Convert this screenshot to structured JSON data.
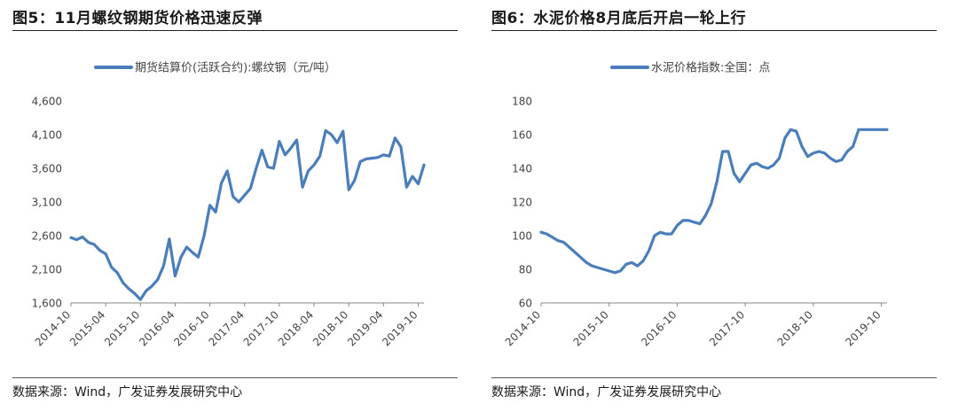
{
  "figures": [
    {
      "title": "图5：11月螺纹钢期货价格迅速反弹",
      "source": "数据来源：Wind，广发证券发展研究中心"
    },
    {
      "title": "图6：水泥价格8月底后开启一轮上行",
      "source": "数据来源：Wind，广发证券发展研究中心"
    }
  ],
  "chart_data": [
    {
      "type": "line",
      "title": "",
      "xlabel": "",
      "ylabel": "",
      "legend": "期货结算价(活跃合约):螺纹钢（元/吨）",
      "legend_position": "top",
      "color": "#4a7ebb",
      "grid": false,
      "ylim": [
        1600,
        4600
      ],
      "yticks": [
        1600,
        2100,
        2600,
        3100,
        3600,
        4100,
        4600
      ],
      "ytick_labels": [
        "1,600",
        "2,100",
        "2,600",
        "3,100",
        "3,600",
        "4,100",
        "4,600"
      ],
      "xlim": [
        "2014-10",
        "2019-11"
      ],
      "xtick_labels": [
        "2014-10",
        "2015-04",
        "2015-10",
        "2016-04",
        "2016-10",
        "2017-04",
        "2017-10",
        "2018-04",
        "2018-10",
        "2019-04",
        "2019-10"
      ],
      "series": [
        {
          "name": "期货结算价(活跃合约):螺纹钢（元/吨）",
          "x": [
            "2014-10",
            "2014-11",
            "2014-12",
            "2015-01",
            "2015-02",
            "2015-03",
            "2015-04",
            "2015-05",
            "2015-06",
            "2015-07",
            "2015-08",
            "2015-09",
            "2015-10",
            "2015-11",
            "2015-12",
            "2016-01",
            "2016-02",
            "2016-03",
            "2016-04",
            "2016-05",
            "2016-06",
            "2016-07",
            "2016-08",
            "2016-09",
            "2016-10",
            "2016-11",
            "2016-12",
            "2017-01",
            "2017-02",
            "2017-03",
            "2017-04",
            "2017-05",
            "2017-06",
            "2017-07",
            "2017-08",
            "2017-09",
            "2017-10",
            "2017-11",
            "2017-12",
            "2018-01",
            "2018-02",
            "2018-03",
            "2018-04",
            "2018-05",
            "2018-06",
            "2018-07",
            "2018-08",
            "2018-09",
            "2018-10",
            "2018-11",
            "2018-12",
            "2019-01",
            "2019-02",
            "2019-03",
            "2019-04",
            "2019-05",
            "2019-06",
            "2019-07",
            "2019-08",
            "2019-09",
            "2019-10",
            "2019-11"
          ],
          "values": [
            2570,
            2540,
            2580,
            2500,
            2470,
            2380,
            2330,
            2130,
            2050,
            1900,
            1810,
            1740,
            1650,
            1780,
            1850,
            1950,
            2150,
            2550,
            2000,
            2280,
            2430,
            2350,
            2280,
            2600,
            3050,
            2950,
            3380,
            3560,
            3180,
            3100,
            3200,
            3300,
            3600,
            3870,
            3620,
            3600,
            4000,
            3800,
            3900,
            4020,
            3320,
            3560,
            3650,
            3780,
            4160,
            4100,
            3980,
            4150,
            3280,
            3420,
            3700,
            3740,
            3750,
            3760,
            3800,
            3780,
            4050,
            3920,
            3320,
            3480,
            3370,
            3650
          ]
        }
      ]
    },
    {
      "type": "line",
      "title": "",
      "xlabel": "",
      "ylabel": "",
      "legend": "水泥价格指数:全国：点",
      "legend_position": "top",
      "color": "#4a7ebb",
      "grid": false,
      "ylim": [
        60,
        180
      ],
      "yticks": [
        60,
        80,
        100,
        120,
        140,
        160,
        180
      ],
      "ytick_labels": [
        "60",
        "80",
        "100",
        "120",
        "140",
        "160",
        "180"
      ],
      "xlim": [
        "2014-10",
        "2019-11"
      ],
      "xtick_labels": [
        "2014-10",
        "2015-10",
        "2016-10",
        "2017-10",
        "2018-10",
        "2019-10"
      ],
      "series": [
        {
          "name": "水泥价格指数:全国：点",
          "x": [
            "2014-10",
            "2014-11",
            "2014-12",
            "2015-01",
            "2015-02",
            "2015-03",
            "2015-04",
            "2015-05",
            "2015-06",
            "2015-07",
            "2015-08",
            "2015-09",
            "2015-10",
            "2015-11",
            "2015-12",
            "2016-01",
            "2016-02",
            "2016-03",
            "2016-04",
            "2016-05",
            "2016-06",
            "2016-07",
            "2016-08",
            "2016-09",
            "2016-10",
            "2016-11",
            "2016-12",
            "2017-01",
            "2017-02",
            "2017-03",
            "2017-04",
            "2017-05",
            "2017-06",
            "2017-07",
            "2017-08",
            "2017-09",
            "2017-10",
            "2017-11",
            "2017-12",
            "2018-01",
            "2018-02",
            "2018-03",
            "2018-04",
            "2018-05",
            "2018-06",
            "2018-07",
            "2018-08",
            "2018-09",
            "2018-10",
            "2018-11",
            "2018-12",
            "2019-01",
            "2019-02",
            "2019-03",
            "2019-04",
            "2019-05",
            "2019-06",
            "2019-07",
            "2019-08",
            "2019-09",
            "2019-10",
            "2019-11"
          ],
          "values": [
            102,
            101,
            99,
            97,
            96,
            93,
            90,
            87,
            84,
            82,
            81,
            80,
            79,
            78,
            79,
            83,
            84,
            82,
            85,
            91,
            100,
            102,
            101,
            101,
            106,
            109,
            109,
            108,
            107,
            112,
            119,
            132,
            150,
            150,
            137,
            132,
            137,
            142,
            143,
            141,
            140,
            142,
            146,
            158,
            163,
            162,
            153,
            147,
            149,
            150,
            149,
            146,
            144,
            145,
            150,
            153,
            163,
            163,
            163,
            163,
            163,
            163
          ]
        }
      ]
    }
  ]
}
